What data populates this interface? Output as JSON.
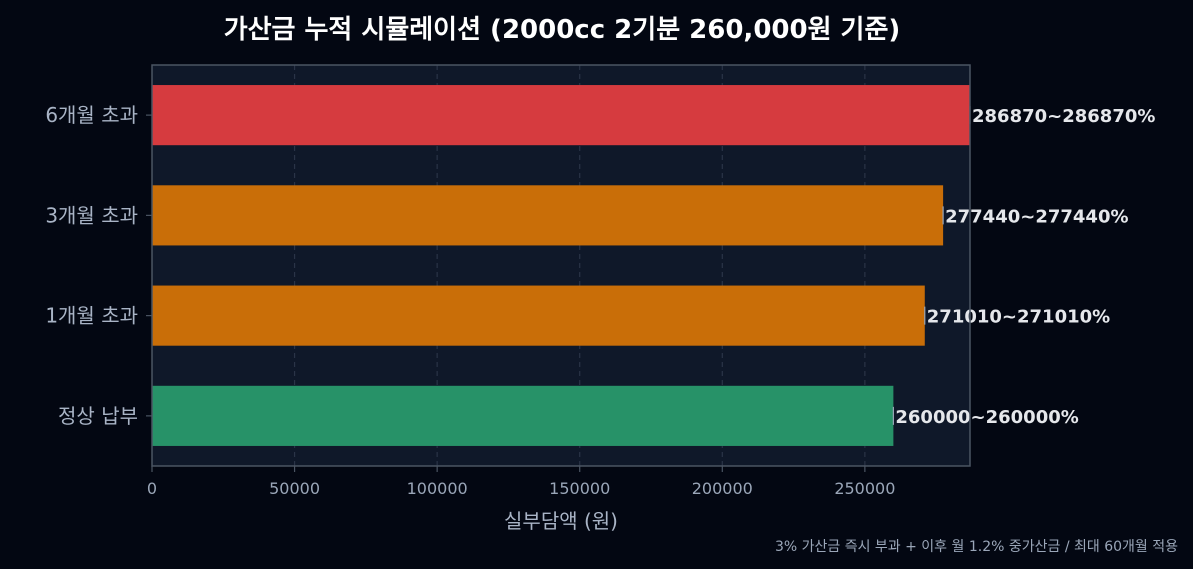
{
  "chart_data": {
    "type": "bar",
    "orientation": "horizontal",
    "title": "가산금 누적 시뮬레이션 (2000cc 2기분 260,000원 기준)",
    "xlabel": "실부담액 (원)",
    "ylabel": "",
    "categories": [
      "6개월 초과",
      "3개월 초과",
      "1개월 초과",
      "정상 납부"
    ],
    "values": [
      286870,
      277440,
      271010,
      260000
    ],
    "value_labels": [
      "286870~286870%",
      "277440~277440%",
      "271010~271010%",
      "260000~260000%"
    ],
    "bar_colors": [
      "#d63b3f",
      "#c96e08",
      "#c96e08",
      "#279268"
    ],
    "xlim": [
      0,
      286870
    ],
    "xticks": [
      0,
      50000,
      100000,
      150000,
      200000,
      250000
    ],
    "grid": "x-dashed",
    "footnote": "3% 가산금 즉시 부과 + 이후 월 1.2% 중가산금 / 최대 60개월 적용"
  },
  "colors": {
    "page_background": "#030712",
    "plot_background": "#0f1829",
    "spine": "#4b5563",
    "grid": "#2a3447"
  }
}
